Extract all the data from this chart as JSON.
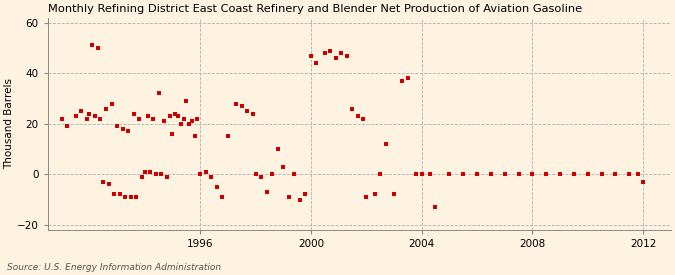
{
  "title": "Monthly Refining District East Coast Refinery and Blender Net Production of Aviation Gasoline",
  "ylabel": "Thousand Barrels",
  "source": "Source: U.S. Energy Information Administration",
  "background_color": "#fdf3e0",
  "dot_color": "#cc0000",
  "xlim": [
    1990.5,
    2013.0
  ],
  "ylim": [
    -22,
    62
  ],
  "yticks": [
    -20,
    0,
    20,
    40,
    60
  ],
  "xticks": [
    1996,
    2000,
    2004,
    2008,
    2012
  ],
  "scatter_x": [
    1991.0,
    1991.2,
    1991.5,
    1991.7,
    1991.9,
    1992.0,
    1992.2,
    1992.4,
    1992.6,
    1992.8,
    1992.1,
    1992.3,
    1993.0,
    1993.2,
    1993.4,
    1993.6,
    1993.8,
    1994.1,
    1994.3,
    1994.5,
    1994.7,
    1994.9,
    1995.1,
    1995.3,
    1995.5,
    1995.7,
    1995.9,
    1992.5,
    1992.7,
    1992.9,
    1993.1,
    1993.3,
    1993.5,
    1993.7,
    1993.9,
    1994.0,
    1994.2,
    1994.4,
    1994.6,
    1994.8,
    1995.0,
    1995.2,
    1995.4,
    1995.6,
    1995.8,
    1996.0,
    1996.2,
    1996.4,
    1996.6,
    1996.8,
    1997.0,
    1997.3,
    1997.5,
    1997.7,
    1997.9,
    1998.0,
    1998.2,
    1998.4,
    1998.6,
    1998.8,
    1999.0,
    1999.2,
    1999.4,
    1999.6,
    1999.8,
    2000.0,
    2000.2,
    2000.5,
    2000.7,
    2000.9,
    2001.1,
    2001.3,
    2001.5,
    2001.7,
    2001.9,
    2002.0,
    2002.3,
    2002.5,
    2002.7,
    2003.0,
    2003.3,
    2003.5,
    2003.8,
    2004.0,
    2004.3,
    2004.5,
    2005.0,
    2005.5,
    2006.0,
    2006.5,
    2007.0,
    2007.5,
    2008.0,
    2008.5,
    2009.0,
    2009.5,
    2010.0,
    2010.5,
    2011.0,
    2011.5,
    2011.8,
    2012.0
  ],
  "scatter_y": [
    22,
    19,
    23,
    25,
    22,
    24,
    23,
    22,
    26,
    28,
    51,
    50,
    19,
    18,
    17,
    24,
    22,
    23,
    22,
    32,
    21,
    23,
    24,
    20,
    29,
    21,
    22,
    -3,
    -4,
    -8,
    -8,
    -9,
    -9,
    -9,
    -1,
    1,
    1,
    0,
    0,
    -1,
    16,
    23,
    22,
    20,
    15,
    0,
    1,
    -1,
    -5,
    -9,
    15,
    28,
    27,
    25,
    24,
    0,
    -1,
    -7,
    0,
    10,
    3,
    -9,
    0,
    -10,
    -8,
    47,
    44,
    48,
    49,
    46,
    48,
    47,
    26,
    23,
    22,
    -9,
    -8,
    0,
    12,
    -8,
    37,
    38,
    0,
    0,
    0,
    -13,
    0,
    0,
    0,
    0,
    0,
    0,
    0,
    0,
    0,
    0,
    0,
    0,
    0,
    0,
    0,
    -3
  ]
}
